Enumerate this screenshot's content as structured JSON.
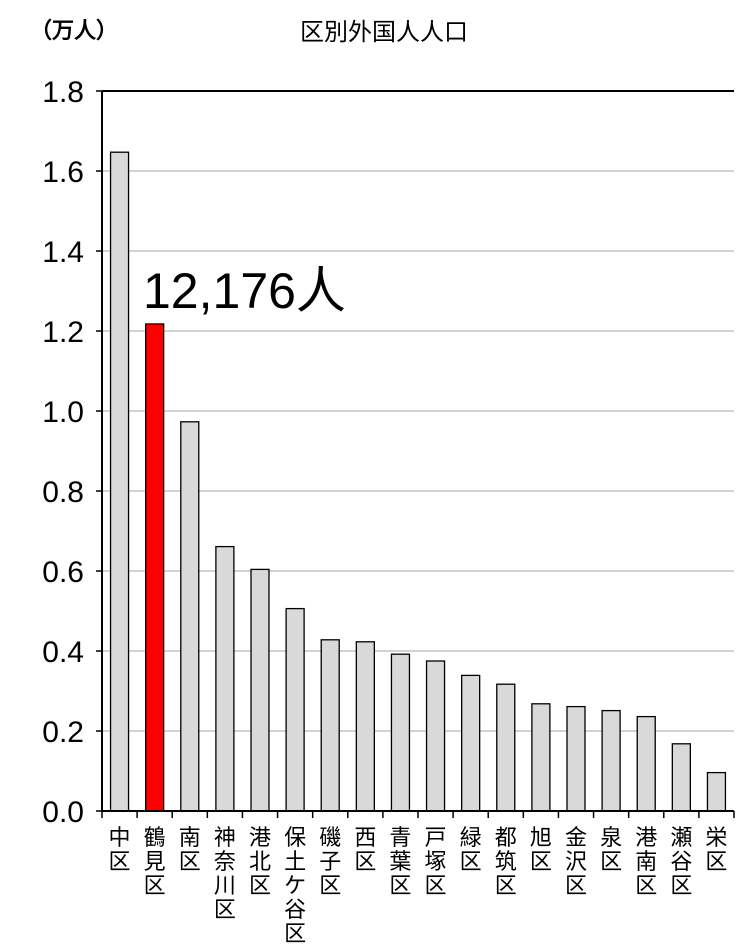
{
  "chart_data": {
    "type": "bar",
    "title": "区別外国人人口",
    "ylabel": "（万人）",
    "xlabel": "",
    "ylim": [
      0,
      1.8
    ],
    "yticks": [
      "0.0",
      "0.2",
      "0.4",
      "0.6",
      "0.8",
      "1.0",
      "1.2",
      "1.4",
      "1.6",
      "1.8"
    ],
    "grid": true,
    "categories": [
      "中区",
      "鶴見区",
      "南区",
      "神奈川区",
      "港北区",
      "保土ケ谷区",
      "磯子区",
      "西区",
      "青葉区",
      "戸塚区",
      "緑区",
      "都筑区",
      "旭区",
      "金沢区",
      "泉区",
      "港南区",
      "瀬谷区",
      "栄区"
    ],
    "values": [
      1.647,
      1.2176,
      0.973,
      0.661,
      0.604,
      0.506,
      0.428,
      0.423,
      0.392,
      0.375,
      0.339,
      0.317,
      0.268,
      0.261,
      0.251,
      0.236,
      0.168,
      0.096
    ],
    "highlight_index": 1,
    "colors": {
      "bar": "#d9d9d9",
      "highlight": "#ff0000",
      "edge": "#000000",
      "grid": "#a6a6a6"
    },
    "annotation": "12,176人"
  }
}
